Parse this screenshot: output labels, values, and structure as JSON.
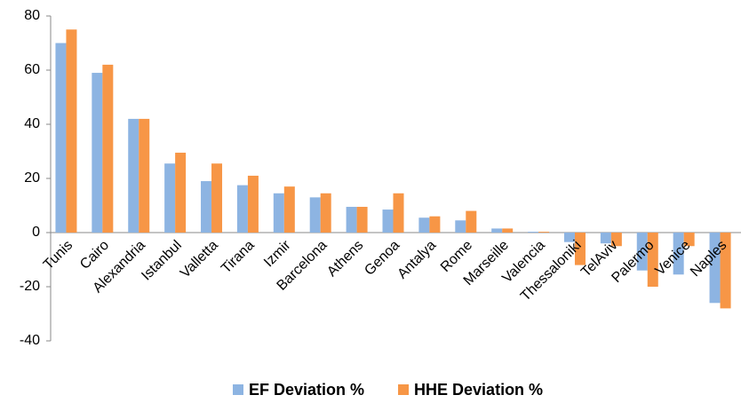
{
  "chart_data": {
    "type": "bar",
    "categories": [
      "Tunis",
      "Cairo",
      "Alexandria",
      "Istanbul",
      "Valletta",
      "Tirana",
      "Izmir",
      "Barcelona",
      "Athens",
      "Genoa",
      "Antalya",
      "Rome",
      "Marseille",
      "Valencia",
      "Thessaloniki",
      "TelAviv",
      "Palermo",
      "Venice",
      "Naples"
    ],
    "series": [
      {
        "name": "EF Deviation %",
        "color": "#8db4e2",
        "values": [
          70,
          59,
          42,
          25.5,
          19,
          17.5,
          14.5,
          13,
          9.5,
          8.5,
          5.5,
          4.5,
          1.5,
          0.3,
          -3.5,
          -4,
          -14,
          -15.5,
          -26
        ]
      },
      {
        "name": "HHE Deviation %",
        "color": "#f79646",
        "values": [
          75,
          62,
          42,
          29.5,
          25.5,
          21,
          17,
          14.5,
          9.5,
          14.5,
          6,
          8,
          1.5,
          0.3,
          -12,
          -5,
          -20,
          -5,
          -28
        ]
      }
    ],
    "ylim": [
      -40,
      80
    ],
    "yticks": [
      -40,
      -20,
      0,
      20,
      40,
      60,
      80
    ],
    "grid": false
  }
}
